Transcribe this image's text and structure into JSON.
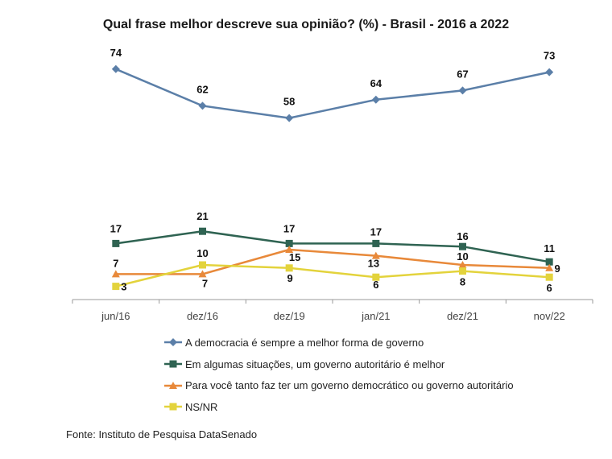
{
  "chart_data": {
    "type": "line",
    "title": "Qual frase melhor descreve sua opinião? (%) - Brasil - 2016 a 2022",
    "categories": [
      "jun/16",
      "dez/16",
      "dez/19",
      "jan/21",
      "dez/21",
      "nov/22"
    ],
    "series": [
      {
        "name": "A democracia é sempre a melhor forma de governo",
        "values": [
          74,
          62,
          58,
          64,
          67,
          73
        ],
        "color": "#5b7fa8",
        "marker": "diamond"
      },
      {
        "name": "Em algumas situações, um governo autoritário é melhor",
        "values": [
          17,
          21,
          17,
          17,
          16,
          11
        ],
        "color": "#2f6352",
        "marker": "square"
      },
      {
        "name": "Para você tanto faz ter um governo democrático ou governo autoritário",
        "values": [
          7,
          7,
          15,
          13,
          10,
          9
        ],
        "color": "#e8893a",
        "marker": "triangle"
      },
      {
        "name": "NS/NR",
        "values": [
          3,
          10,
          9,
          6,
          8,
          6
        ],
        "color": "#e3d33c",
        "marker": "square"
      }
    ],
    "ylim": [
      0,
      80
    ],
    "xlabel": "",
    "ylabel": "",
    "legend_position": "bottom",
    "grid": false
  },
  "source": "Fonte: Instituto de Pesquisa DataSenado"
}
